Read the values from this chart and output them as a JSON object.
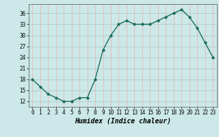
{
  "x": [
    0,
    1,
    2,
    3,
    4,
    5,
    6,
    7,
    8,
    9,
    10,
    11,
    12,
    13,
    14,
    15,
    16,
    17,
    18,
    19,
    20,
    21,
    22,
    23
  ],
  "y": [
    18,
    16,
    14,
    13,
    12,
    12,
    13,
    13,
    18,
    26,
    30,
    33,
    34,
    33,
    33,
    33,
    34,
    35,
    36,
    37,
    35,
    32,
    28,
    24
  ],
  "line_color": "#1a6b5a",
  "marker_color": "#1a6b5a",
  "bg_color": "#cce8e8",
  "grid_color_h": "#aacccc",
  "grid_color_v": "#e8b8b8",
  "xlabel": "Humidex (Indice chaleur)",
  "xlabel_fontsize": 7,
  "ylabel_ticks": [
    12,
    15,
    18,
    21,
    24,
    27,
    30,
    33,
    36
  ],
  "ylim": [
    10.5,
    38.5
  ],
  "xlim": [
    -0.5,
    23.5
  ],
  "xticks": [
    0,
    1,
    2,
    3,
    4,
    5,
    6,
    7,
    8,
    9,
    10,
    11,
    12,
    13,
    14,
    15,
    16,
    17,
    18,
    19,
    20,
    21,
    22,
    23
  ],
  "tick_fontsize": 5.5,
  "line_width": 1.0,
  "marker_size": 2.5
}
